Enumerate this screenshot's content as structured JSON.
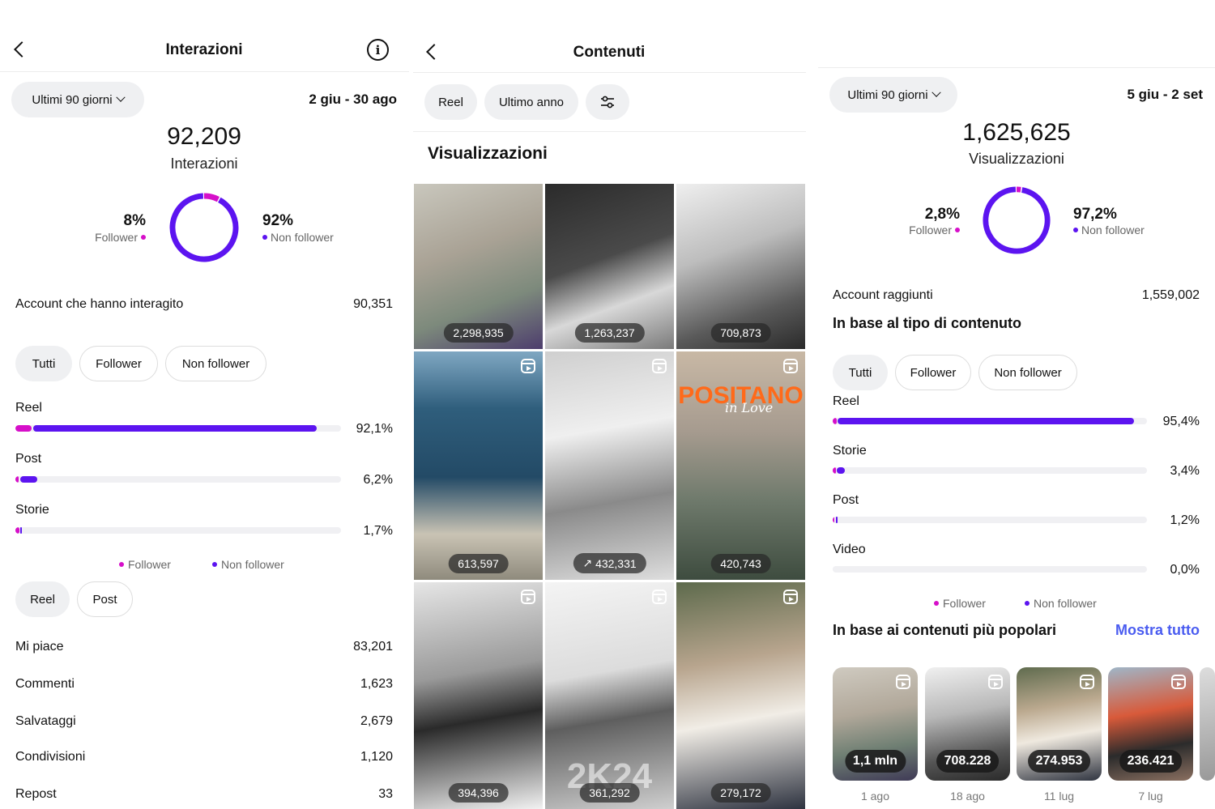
{
  "colors": {
    "follower": "#d60fc9",
    "non_follower": "#5c14f0",
    "link": "#4a5cf0"
  },
  "panel1": {
    "title": "Interazioni",
    "range_label": "Ultimi 90 giorni",
    "date_range": "2 giu - 30 ago",
    "total": "92,209",
    "total_label": "Interazioni",
    "follower_pct": "8%",
    "follower_label": "Follower",
    "non_follower_pct": "92%",
    "non_follower_label": "Non follower",
    "donut": {
      "follower": 8,
      "non_follower": 92
    },
    "accounts_label": "Account che hanno interagito",
    "accounts_value": "90,351",
    "filters": [
      "Tutti",
      "Follower",
      "Non follower"
    ],
    "bars": [
      {
        "label": "Reel",
        "value": "92,1%",
        "follower": 5,
        "non_follower": 87.1
      },
      {
        "label": "Post",
        "value": "6,2%",
        "follower": 1,
        "non_follower": 5.2
      },
      {
        "label": "Storie",
        "value": "1,7%",
        "follower": 1.2,
        "non_follower": 0.5
      }
    ],
    "legend_follower": "Follower",
    "legend_non_follower": "Non follower",
    "type_tabs": [
      "Reel",
      "Post"
    ],
    "metrics": [
      {
        "label": "Mi piace",
        "value": "83,201"
      },
      {
        "label": "Commenti",
        "value": "1,623"
      },
      {
        "label": "Salvataggi",
        "value": "2,679"
      },
      {
        "label": "Condivisioni",
        "value": "1,120"
      },
      {
        "label": "Repost",
        "value": "33"
      }
    ]
  },
  "panel2": {
    "title": "Contenuti",
    "filter_type": "Reel",
    "filter_period": "Ultimo anno",
    "section_title": "Visualizzazioni",
    "grid": [
      {
        "count": "2,298,935",
        "reel": false,
        "trend": false,
        "bg": "linear-gradient(160deg,#c9c7bd 0%,#a9a295 40%,#7d8a7c 70%,#4d3d6d 100%)"
      },
      {
        "count": "1,263,237",
        "reel": false,
        "trend": false,
        "bg": "linear-gradient(160deg,#2b2b2b 0%,#4a4a4a 45%,#d8d8d8 70%,#7a7a7a 100%)"
      },
      {
        "count": "709,873",
        "reel": false,
        "trend": false,
        "bg": "linear-gradient(160deg,#efefef 0%,#bdbdbd 40%,#5a5a5a 75%,#2a2a2a 100%)"
      },
      {
        "count": "613,597",
        "reel": true,
        "trend": false,
        "bg": "linear-gradient(180deg,#7fa7c2 0%,#2f5e7c 25%,#234a66 55%,#c9c3b4 80%,#8f8b7d 100%)"
      },
      {
        "count": "432,331",
        "reel": true,
        "trend": true,
        "bg": "linear-gradient(170deg,#cfcfcf 0%,#efefef 35%,#8a8a8a 65%,#dedede 100%)"
      },
      {
        "count": "420,743",
        "reel": true,
        "trend": false,
        "bg": "linear-gradient(180deg,#c8b8a5 0%,#a69b8f 35%,#6f7a6c 65%,#3e4c3f 100%)"
      },
      {
        "count": "394,396",
        "reel": true,
        "trend": false,
        "bg": "linear-gradient(170deg,#e6e6e6 0%,#9a9a9a 40%,#2a2a2a 60%,#f2f2f2 100%)"
      },
      {
        "count": "361,292",
        "reel": true,
        "trend": false,
        "bg": "linear-gradient(170deg,#f4f4f4 0%,#dcdcdc 40%,#5e5e5e 60%,#cfcfcf 100%)"
      },
      {
        "count": "279,172",
        "reel": true,
        "trend": false,
        "bg": "linear-gradient(170deg,#5d6a4c 0%,#b8a58e 35%,#f1ede6 60%,#2e3340 100%)"
      }
    ],
    "overlay_title": "POSITANO",
    "overlay_sub": "in Love",
    "overlay_2k24": "2K24"
  },
  "panel3": {
    "range_label": "Ultimi 90 giorni",
    "date_range": "5 giu - 2 set",
    "total": "1,625,625",
    "total_label": "Visualizzazioni",
    "follower_pct": "2,8%",
    "follower_label": "Follower",
    "non_follower_pct": "97,2%",
    "non_follower_label": "Non follower",
    "donut": {
      "follower": 2.8,
      "non_follower": 97.2
    },
    "accounts_label": "Account raggiunti",
    "accounts_value": "1,559,002",
    "content_type_title": "In base al tipo di contenuto",
    "filters": [
      "Tutti",
      "Follower",
      "Non follower"
    ],
    "bars": [
      {
        "label": "Reel",
        "value": "95,4%",
        "follower": 1.2,
        "non_follower": 94.2
      },
      {
        "label": "Storie",
        "value": "3,4%",
        "follower": 1,
        "non_follower": 2.4
      },
      {
        "label": "Post",
        "value": "1,2%",
        "follower": 0.6,
        "non_follower": 0.6
      },
      {
        "label": "Video",
        "value": "0,0%",
        "follower": 0,
        "non_follower": 0
      }
    ],
    "legend_follower": "Follower",
    "legend_non_follower": "Non follower",
    "popular_title": "In base ai contenuti più popolari",
    "show_all": "Mostra tutto",
    "popular": [
      {
        "value": "1,1 mln",
        "date": "1 ago",
        "bg": "linear-gradient(170deg,#cfcac0 0%,#b1a89a 40%,#6f7f73 70%,#3f3a56 100%)"
      },
      {
        "value": "708.228",
        "date": "18 ago",
        "bg": "linear-gradient(170deg,#f0f0f0 0%,#b8b8b8 40%,#555 75%,#2a2a2a 100%)"
      },
      {
        "value": "274.953",
        "date": "11 lug",
        "bg": "linear-gradient(170deg,#5f6b4e 0%,#bba98f 35%,#efe9df 60%,#2f3440 100%)"
      },
      {
        "value": "236.421",
        "date": "7 lug",
        "bg": "linear-gradient(170deg,#9fb6c8 0%,#d85a3a 40%,#2b2b2b 70%,#8a6f60 100%)"
      }
    ]
  }
}
